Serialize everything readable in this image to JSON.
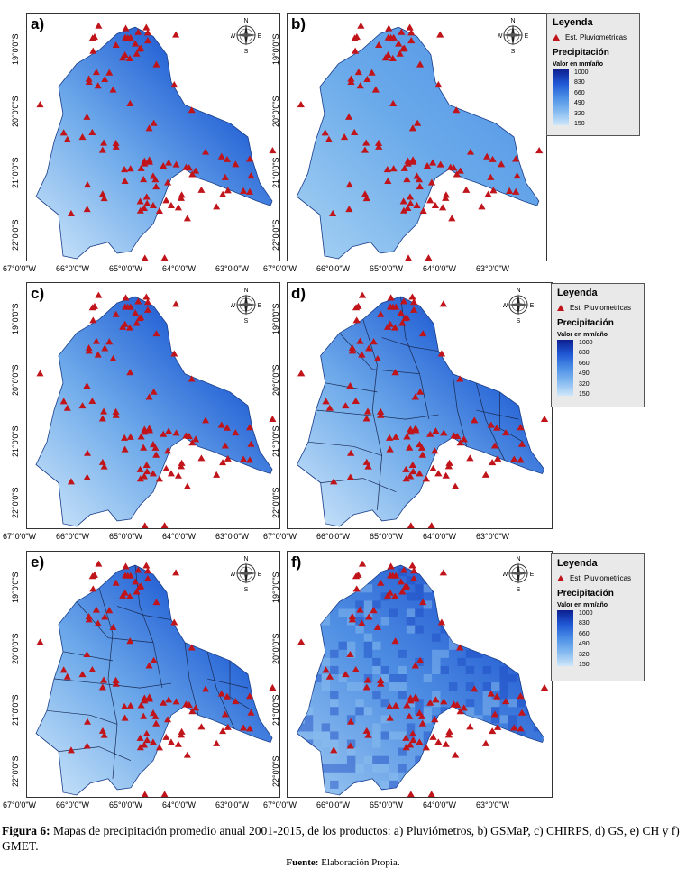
{
  "panels": [
    {
      "label": "a)",
      "style": "smooth"
    },
    {
      "label": "b)",
      "style": "flat"
    },
    {
      "label": "c)",
      "style": "smooth"
    },
    {
      "label": "d)",
      "style": "basins"
    },
    {
      "label": "e)",
      "style": "basins"
    },
    {
      "label": "f)",
      "style": "pixel"
    }
  ],
  "y_ticks": [
    "19°0'0\"S",
    "20°0'0\"S",
    "21°0'0\"S",
    "22°0'0\"S"
  ],
  "x_ticks": [
    "67°0'0\"W",
    "66°0'0\"W",
    "65°0'0\"W",
    "64°0'0\"W",
    "63°0'0\"W"
  ],
  "compass": {
    "n": "N",
    "s": "S",
    "e": "E",
    "w": "W"
  },
  "legend": {
    "title": "Leyenda",
    "station": "Est. Pluviometricas",
    "subtitle": "Precipitación",
    "unit": "Valor en mm/año",
    "ticks": [
      "1000",
      "830",
      "660",
      "490",
      "320",
      "150"
    ]
  },
  "colors": {
    "station": "#c0141a",
    "dark": "#0d1f8f",
    "light": "#cfe7fa"
  },
  "caption": {
    "prefix": "Figura 6:",
    "text": "Mapas de precipitación promedio anual 2001-2015, de los productos: a) Pluviómetros, b) GSMaP, c) CHIRPS, d) GS, e) CH y f) GMET."
  },
  "source": {
    "label": "Fuente:",
    "text": "Elaboración Propia."
  }
}
